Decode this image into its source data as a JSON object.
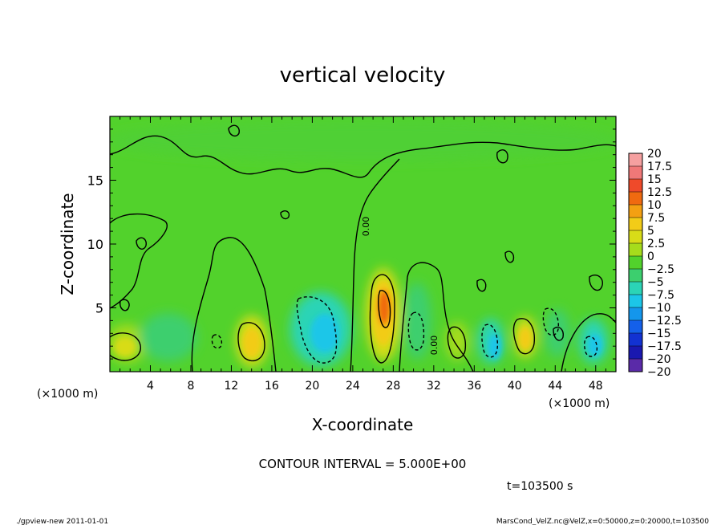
{
  "chart_data": {
    "type": "heatmap",
    "title": "vertical velocity",
    "xlabel": "X-coordinate",
    "ylabel": "Z-coordinate",
    "x_unit": "(×1000 m)",
    "z_unit": "(×1000 m)",
    "xlim": [
      0,
      50
    ],
    "ylim": [
      0,
      20
    ],
    "x_ticks": [
      "4",
      "8",
      "12",
      "16",
      "20",
      "24",
      "28",
      "32",
      "36",
      "40",
      "44",
      "48"
    ],
    "y_ticks": [
      "5",
      "10",
      "15"
    ],
    "colorbar": {
      "labels": [
        "20",
        "17.5",
        "15",
        "12.5",
        "10",
        "7.5",
        "5",
        "2.5",
        "0",
        "−2.5",
        "−5",
        "−7.5",
        "−10",
        "−12.5",
        "−15",
        "−17.5",
        "−20"
      ],
      "colors": [
        "#f5a0a0",
        "#f07878",
        "#ef4a2a",
        "#f06a10",
        "#f4a012",
        "#f2cc18",
        "#d8dc18",
        "#a6dc1c",
        "#52d22c",
        "#3ccf6e",
        "#2bd4b6",
        "#1cc6e8",
        "#1496ec",
        "#1460ea",
        "#1232d2",
        "#1a18b0",
        "#5a2aa8"
      ]
    },
    "contour_labels": [
      "0.00",
      "0.00"
    ],
    "contour_interval_text": "CONTOUR INTERVAL = 5.000E+00",
    "time_text": "t=103500 s"
  },
  "footer": {
    "left": "./gpview-new  2011-01-01",
    "right": "MarsCond_VelZ.nc@VelZ,x=0:50000,z=0:20000,t=103500"
  },
  "colors": {
    "background": "#52d22c",
    "frame": "#000000"
  }
}
